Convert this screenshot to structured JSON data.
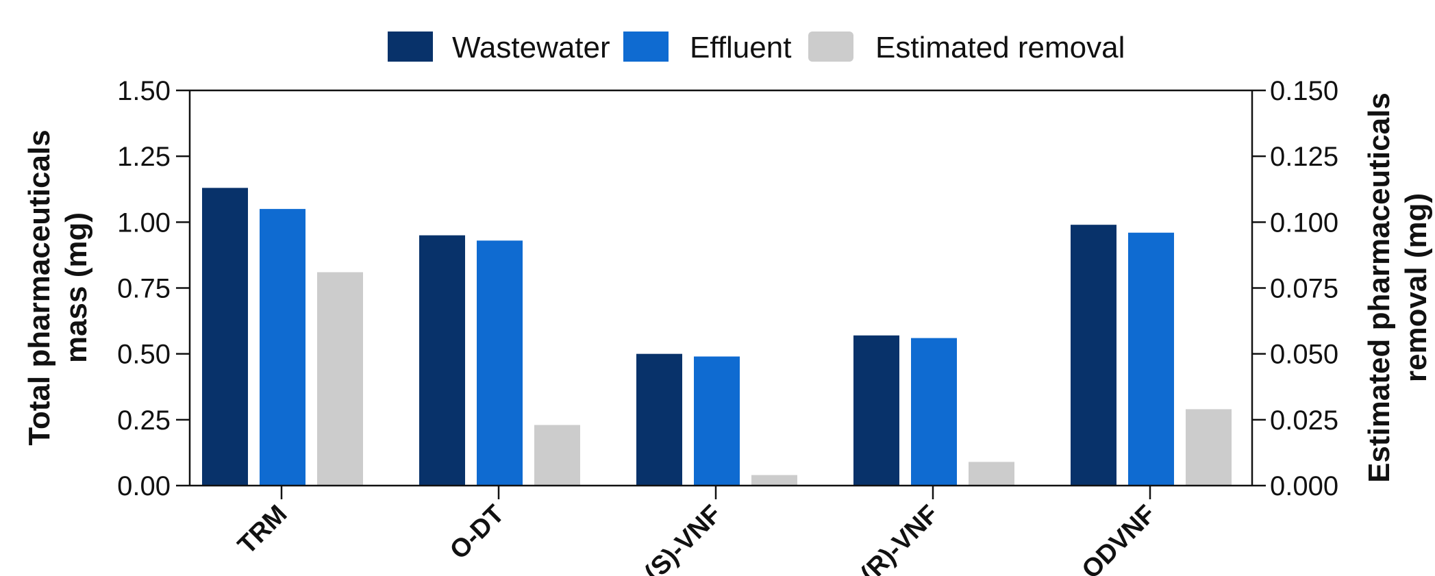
{
  "chart_data": {
    "type": "bar",
    "categories": [
      "TRM",
      "O-DT",
      "(S)-VNF",
      "(R)-VNF",
      "ODVNF"
    ],
    "series": [
      {
        "name": "Wastewater",
        "axis": "left",
        "color": "#08326a",
        "values": [
          1.13,
          0.95,
          0.5,
          0.57,
          0.99
        ]
      },
      {
        "name": "Effluent",
        "axis": "left",
        "color": "#0f6bd1",
        "values": [
          1.05,
          0.93,
          0.49,
          0.56,
          0.96
        ]
      },
      {
        "name": "Estimated removal",
        "axis": "right",
        "color": "#cccccc",
        "values": [
          0.081,
          0.023,
          0.004,
          0.009,
          0.029
        ]
      }
    ],
    "ylabel": "Total pharmaceuticals mass (mg)",
    "ylabel_lines": [
      "Total pharmaceuticals",
      "mass (mg)"
    ],
    "y2label": "Estimated pharmaceuticals removal (mg)",
    "y2label_lines": [
      "Estimated pharmaceuticals",
      "removal (mg)"
    ],
    "ylim": [
      0,
      1.5
    ],
    "y2lim": [
      0,
      0.15
    ],
    "yticks": [
      "0.00",
      "0.25",
      "0.50",
      "0.75",
      "1.00",
      "1.25",
      "1.50"
    ],
    "y2ticks": [
      "0.000",
      "0.025",
      "0.050",
      "0.075",
      "0.100",
      "0.125",
      "0.150"
    ],
    "legend_position": "top-center",
    "grid": false
  }
}
